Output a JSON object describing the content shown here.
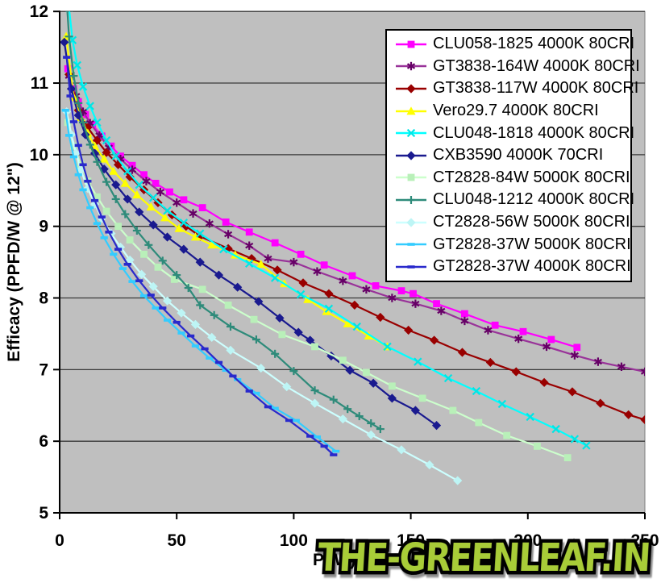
{
  "watermark": {
    "text": "THE-GREENLEAF.IN",
    "fill_color": "#a8cc38",
    "outline_color": "#000000"
  },
  "chart_data": {
    "type": "line",
    "title": "",
    "xlabel": "P (W)",
    "ylabel": "Efficacy (PPFD/W @ 12\")",
    "xlim": [
      0,
      250
    ],
    "ylim": [
      5,
      12
    ],
    "x_ticks": [
      0,
      50,
      100,
      150,
      200,
      250
    ],
    "y_ticks": [
      5,
      6,
      7,
      8,
      9,
      10,
      11,
      12
    ],
    "grid": "horizontal",
    "legend_position": "top-right",
    "plot_bg": "#bfbfbf",
    "grid_color": "#3a3a3a",
    "axis_color": "#000000",
    "series": [
      {
        "name": "CLU058-1825 4000K 80CRI",
        "line_color": "#ff00ff",
        "marker_color": "#ff00ff",
        "marker": "square",
        "points": [
          [
            3.5,
            11.2
          ],
          [
            6,
            10.92
          ],
          [
            8,
            10.74
          ],
          [
            11,
            10.56
          ],
          [
            14,
            10.42
          ],
          [
            18,
            10.26
          ],
          [
            22,
            10.12
          ],
          [
            26,
            9.98
          ],
          [
            31,
            9.85
          ],
          [
            36,
            9.72
          ],
          [
            41,
            9.6
          ],
          [
            47,
            9.48
          ],
          [
            53,
            9.37
          ],
          [
            61,
            9.26
          ],
          [
            71,
            9.06
          ],
          [
            81,
            8.92
          ],
          [
            92,
            8.77
          ],
          [
            103,
            8.61
          ],
          [
            113,
            8.46
          ],
          [
            125,
            8.31
          ],
          [
            135,
            8.17
          ],
          [
            146,
            8.1
          ],
          [
            151,
            8.06
          ],
          [
            161,
            7.92
          ],
          [
            173,
            7.78
          ],
          [
            186,
            7.62
          ],
          [
            198,
            7.53
          ],
          [
            210,
            7.42
          ],
          [
            221,
            7.31
          ]
        ]
      },
      {
        "name": "GT3838-164W 4000K 80CRI",
        "line_color": "#993399",
        "marker_color": "#660066",
        "marker": "asterisk",
        "points": [
          [
            4,
            11.1
          ],
          [
            7,
            10.82
          ],
          [
            10,
            10.6
          ],
          [
            13,
            10.44
          ],
          [
            17,
            10.27
          ],
          [
            21,
            10.1
          ],
          [
            26,
            9.94
          ],
          [
            31,
            9.79
          ],
          [
            37,
            9.63
          ],
          [
            43,
            9.48
          ],
          [
            50,
            9.33
          ],
          [
            57,
            9.18
          ],
          [
            64,
            9.04
          ],
          [
            72,
            8.89
          ],
          [
            81,
            8.73
          ],
          [
            89,
            8.55
          ],
          [
            100,
            8.5
          ],
          [
            110,
            8.37
          ],
          [
            121,
            8.24
          ],
          [
            131,
            8.12
          ],
          [
            142,
            8.0
          ],
          [
            152,
            7.92
          ],
          [
            163,
            7.82
          ],
          [
            173,
            7.68
          ],
          [
            183,
            7.55
          ],
          [
            196,
            7.43
          ],
          [
            208,
            7.32
          ],
          [
            220,
            7.2
          ],
          [
            230,
            7.11
          ],
          [
            240,
            7.04
          ],
          [
            250,
            6.97
          ]
        ]
      },
      {
        "name": "GT3838-117W 4000K 80CRI",
        "line_color": "#990000",
        "marker_color": "#990000",
        "marker": "diamond",
        "points": [
          [
            4,
            11.12
          ],
          [
            8,
            10.62
          ],
          [
            12,
            10.38
          ],
          [
            16,
            10.2
          ],
          [
            20,
            10.03
          ],
          [
            25,
            9.86
          ],
          [
            30,
            9.69
          ],
          [
            36,
            9.51
          ],
          [
            42,
            9.33
          ],
          [
            48,
            9.16
          ],
          [
            54,
            9.0
          ],
          [
            60,
            8.86
          ],
          [
            72,
            8.69
          ],
          [
            82,
            8.55
          ],
          [
            93,
            8.39
          ],
          [
            104,
            8.21
          ],
          [
            115,
            8.06
          ],
          [
            126,
            7.9
          ],
          [
            137,
            7.73
          ],
          [
            149,
            7.55
          ],
          [
            160,
            7.41
          ],
          [
            172,
            7.24
          ],
          [
            184,
            7.1
          ],
          [
            195,
            6.97
          ],
          [
            207,
            6.82
          ],
          [
            219,
            6.69
          ],
          [
            231,
            6.53
          ],
          [
            243,
            6.37
          ],
          [
            250,
            6.3
          ]
        ]
      },
      {
        "name": "Vero29.7 4000K 80CRI",
        "line_color": "#ffff00",
        "marker_color": "#ffff00",
        "marker": "triangle",
        "points": [
          [
            2.8,
            11.65
          ],
          [
            6,
            10.8
          ],
          [
            9,
            10.52
          ],
          [
            12,
            10.3
          ],
          [
            15,
            10.12
          ],
          [
            19,
            9.94
          ],
          [
            23,
            9.77
          ],
          [
            28,
            9.6
          ],
          [
            33,
            9.44
          ],
          [
            39,
            9.27
          ],
          [
            45,
            9.12
          ],
          [
            51,
            8.97
          ],
          [
            58,
            8.85
          ],
          [
            65,
            8.74
          ],
          [
            75,
            8.6
          ],
          [
            86,
            8.47
          ],
          [
            96,
            8.2
          ],
          [
            106,
            7.98
          ],
          [
            114,
            7.81
          ],
          [
            123,
            7.64
          ],
          [
            132,
            7.47
          ],
          [
            140,
            7.32
          ]
        ]
      },
      {
        "name": "CLU048-1818 4000K 80CRI",
        "line_color": "#00ffff",
        "marker_color": "#00e5e5",
        "marker": "x",
        "points": [
          [
            4,
            12.05
          ],
          [
            5.5,
            11.6
          ],
          [
            7.5,
            11.25
          ],
          [
            10,
            10.95
          ],
          [
            13,
            10.68
          ],
          [
            16,
            10.45
          ],
          [
            20,
            10.2
          ],
          [
            24,
            9.98
          ],
          [
            29,
            9.77
          ],
          [
            34,
            9.58
          ],
          [
            40,
            9.4
          ],
          [
            46,
            9.22
          ],
          [
            53,
            9.05
          ],
          [
            60,
            8.9
          ],
          [
            70,
            8.68
          ],
          [
            81,
            8.48
          ],
          [
            92,
            8.28
          ],
          [
            103,
            8.05
          ],
          [
            115,
            7.85
          ],
          [
            127,
            7.6
          ],
          [
            140,
            7.32
          ],
          [
            153,
            7.11
          ],
          [
            166,
            6.88
          ],
          [
            178,
            6.7
          ],
          [
            189,
            6.52
          ],
          [
            201,
            6.34
          ],
          [
            212,
            6.17
          ],
          [
            220,
            6.03
          ],
          [
            225,
            5.94
          ]
        ]
      },
      {
        "name": "CXB3590 4000K 70CRI",
        "line_color": "#1a1a8f",
        "marker_color": "#1a1a8f",
        "marker": "diamond",
        "points": [
          [
            2,
            11.57
          ],
          [
            5,
            10.92
          ],
          [
            8,
            10.55
          ],
          [
            11,
            10.28
          ],
          [
            15,
            10.02
          ],
          [
            19,
            9.8
          ],
          [
            24,
            9.58
          ],
          [
            29,
            9.38
          ],
          [
            34,
            9.2
          ],
          [
            40,
            9.02
          ],
          [
            46,
            8.85
          ],
          [
            53,
            8.68
          ],
          [
            60,
            8.5
          ],
          [
            68,
            8.32
          ],
          [
            76,
            8.15
          ],
          [
            85,
            7.95
          ],
          [
            94,
            7.72
          ],
          [
            102,
            7.52
          ],
          [
            107,
            7.41
          ],
          [
            116,
            7.19
          ],
          [
            124,
            6.99
          ],
          [
            134,
            6.81
          ],
          [
            142,
            6.6
          ],
          [
            152,
            6.43
          ],
          [
            161,
            6.22
          ]
        ]
      },
      {
        "name": "CT2828-84W 5000K 80CRI",
        "line_color": "#ccffcc",
        "marker_color": "#b9f0b9",
        "marker": "square",
        "points": [
          [
            3.5,
            10.45
          ],
          [
            6,
            10.12
          ],
          [
            9,
            9.86
          ],
          [
            12,
            9.63
          ],
          [
            16,
            9.41
          ],
          [
            20,
            9.21
          ],
          [
            25,
            9.0
          ],
          [
            30,
            8.81
          ],
          [
            36,
            8.61
          ],
          [
            42,
            8.43
          ],
          [
            49,
            8.26
          ],
          [
            61,
            8.12
          ],
          [
            72,
            7.9
          ],
          [
            83,
            7.7
          ],
          [
            95,
            7.49
          ],
          [
            109,
            7.32
          ],
          [
            121,
            7.13
          ],
          [
            131,
            6.96
          ],
          [
            142,
            6.77
          ],
          [
            155,
            6.6
          ],
          [
            168,
            6.43
          ],
          [
            179,
            6.26
          ],
          [
            191,
            6.08
          ],
          [
            204,
            5.93
          ],
          [
            217,
            5.77
          ]
        ]
      },
      {
        "name": "CLU048-1212 4000K 80CRI",
        "line_color": "#2e8b7a",
        "marker_color": "#2e8b7a",
        "marker": "plus",
        "points": [
          [
            2.5,
            12.4
          ],
          [
            4,
            11.65
          ],
          [
            6,
            11.1
          ],
          [
            8,
            10.72
          ],
          [
            10,
            10.45
          ],
          [
            13,
            10.14
          ],
          [
            16,
            9.9
          ],
          [
            20,
            9.62
          ],
          [
            24,
            9.38
          ],
          [
            28,
            9.17
          ],
          [
            33,
            8.94
          ],
          [
            38,
            8.74
          ],
          [
            44,
            8.52
          ],
          [
            50,
            8.32
          ],
          [
            55,
            8.14
          ],
          [
            60,
            7.9
          ],
          [
            66,
            7.76
          ],
          [
            73,
            7.6
          ],
          [
            84,
            7.42
          ],
          [
            92,
            7.22
          ],
          [
            100,
            6.98
          ],
          [
            109,
            6.71
          ],
          [
            117,
            6.58
          ],
          [
            123,
            6.45
          ],
          [
            128,
            6.35
          ],
          [
            133,
            6.25
          ],
          [
            137,
            6.17
          ]
        ]
      },
      {
        "name": "CT2828-56W 5000K 80CRI",
        "line_color": "#ccffff",
        "marker_color": "#bdf5f5",
        "marker": "diamond",
        "points": [
          [
            3,
            10.6
          ],
          [
            5,
            10.28
          ],
          [
            7,
            10.02
          ],
          [
            9,
            9.79
          ],
          [
            12,
            9.53
          ],
          [
            15,
            9.31
          ],
          [
            18,
            9.11
          ],
          [
            22,
            8.9
          ],
          [
            26,
            8.71
          ],
          [
            30,
            8.53
          ],
          [
            35,
            8.33
          ],
          [
            40,
            8.16
          ],
          [
            46,
            7.96
          ],
          [
            52,
            7.79
          ],
          [
            58,
            7.63
          ],
          [
            65,
            7.45
          ],
          [
            73,
            7.27
          ],
          [
            86,
            7.02
          ],
          [
            97,
            6.76
          ],
          [
            109,
            6.53
          ],
          [
            121,
            6.31
          ],
          [
            133,
            6.09
          ],
          [
            146,
            5.88
          ],
          [
            158,
            5.67
          ],
          [
            170,
            5.45
          ]
        ]
      },
      {
        "name": "GT2828-37W 5000K 80CRI",
        "line_color": "#33ccff",
        "marker_color": "#33ccff",
        "marker": "dash",
        "points": [
          [
            2.5,
            10.62
          ],
          [
            4,
            10.27
          ],
          [
            6,
            9.97
          ],
          [
            8,
            9.72
          ],
          [
            10,
            9.51
          ],
          [
            13,
            9.26
          ],
          [
            16,
            9.04
          ],
          [
            19,
            8.84
          ],
          [
            23,
            8.61
          ],
          [
            27,
            8.41
          ],
          [
            31,
            8.23
          ],
          [
            36,
            8.03
          ],
          [
            41,
            7.86
          ],
          [
            46,
            7.69
          ],
          [
            52,
            7.51
          ],
          [
            58,
            7.33
          ],
          [
            64,
            7.16
          ],
          [
            71,
            6.99
          ],
          [
            76,
            6.86
          ],
          [
            84,
            6.67
          ],
          [
            92,
            6.46
          ],
          [
            101,
            6.29
          ],
          [
            110,
            6.06
          ],
          [
            118,
            5.86
          ]
        ]
      },
      {
        "name": "GT2828-37W 4000K 80CRI",
        "line_color": "#2929cc",
        "marker_color": "#2929cc",
        "marker": "dash",
        "points": [
          [
            3,
            11.36
          ],
          [
            4.5,
            10.82
          ],
          [
            6,
            10.46
          ],
          [
            8,
            10.13
          ],
          [
            10,
            9.86
          ],
          [
            12,
            9.63
          ],
          [
            15,
            9.36
          ],
          [
            18,
            9.13
          ],
          [
            21,
            8.92
          ],
          [
            25,
            8.68
          ],
          [
            29,
            8.47
          ],
          [
            34,
            8.24
          ],
          [
            39,
            8.04
          ],
          [
            44,
            7.86
          ],
          [
            50,
            7.66
          ],
          [
            56,
            7.47
          ],
          [
            62,
            7.29
          ],
          [
            68,
            7.1
          ],
          [
            74,
            6.91
          ],
          [
            81,
            6.7
          ],
          [
            89,
            6.48
          ],
          [
            98,
            6.29
          ],
          [
            107,
            6.07
          ],
          [
            113,
            5.93
          ],
          [
            117,
            5.81
          ]
        ]
      }
    ]
  }
}
